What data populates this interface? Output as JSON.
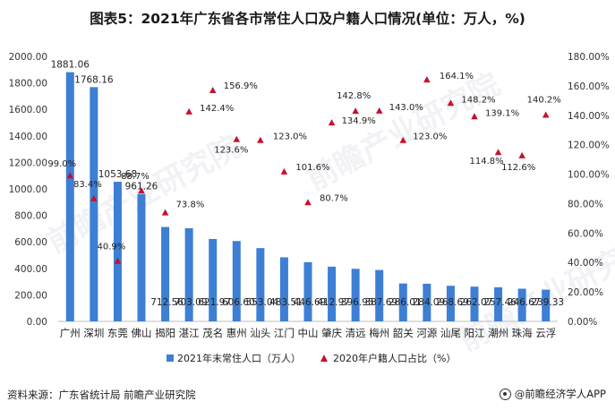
{
  "title": "图表5：2021年广东省各市常住人口及户籍人口情况(单位：万人，%)",
  "source": "资料来源：广东省统计局 前瞻产业研究院",
  "brand": "@前瞻经济学人APP",
  "watermark": "前瞻产业研究院",
  "colors": {
    "bar": "#3d7fd4",
    "marker": "#c8102e",
    "axis": "#333333"
  },
  "chart_data": {
    "type": "bar",
    "categories": [
      "广州",
      "深圳",
      "东莞",
      "佛山",
      "揭阳",
      "湛江",
      "茂名",
      "惠州",
      "汕头",
      "江门",
      "中山",
      "肇庆",
      "清远",
      "梅州",
      "韶关",
      "河源",
      "汕尾",
      "阳江",
      "潮州",
      "珠海",
      "云浮"
    ],
    "series": [
      {
        "name": "2021年末常住人口（万人）",
        "type": "bar",
        "axis": "left",
        "values": [
          1881.06,
          1768.16,
          1053.68,
          961.26,
          712.56,
          703.09,
          621.97,
          606.6,
          553.04,
          483.51,
          446.69,
          412.97,
          396.95,
          387.69,
          286.01,
          284.09,
          268.69,
          262.07,
          257.46,
          246.67,
          239.33
        ],
        "labels": [
          "1881.06",
          "1768.16",
          "1053.68",
          "961.26",
          "712.56",
          "703.09",
          "621.97",
          "606.60",
          "553.04",
          "483.51",
          "446.69",
          "412.97",
          "396.95",
          "387.69",
          "286.01",
          "284.09",
          "268.69",
          "262.07",
          "257.46",
          "246.67",
          "239.33"
        ]
      },
      {
        "name": "2020年户籍人口占比（%）",
        "type": "scatter",
        "axis": "right",
        "values": [
          99.0,
          83.4,
          40.9,
          88.7,
          73.8,
          142.4,
          156.9,
          123.6,
          123.0,
          101.6,
          80.7,
          134.9,
          142.8,
          143.0,
          123.0,
          164.1,
          148.2,
          139.1,
          114.8,
          112.6,
          140.2
        ],
        "labels": [
          "99.0%",
          "83.4%",
          "40.9%",
          "88.7%",
          "73.8%",
          "142.4%",
          "156.9%",
          "123.6%",
          "123.0%",
          "101.6%",
          "80.7%",
          "134.9%",
          "142.8%",
          "143.0%",
          "123.0%",
          "164.1%",
          "148.2%",
          "139.1%",
          "114.8%",
          "112.6%",
          "140.2%"
        ]
      }
    ],
    "y_left": {
      "min": 0,
      "max": 2000,
      "ticks": [
        "0.00",
        "200.00",
        "400.00",
        "600.00",
        "800.00",
        "1000.00",
        "1200.00",
        "1400.00",
        "1600.00",
        "1800.00",
        "2000.00"
      ]
    },
    "y_right": {
      "min": 0,
      "max": 180,
      "ticks": [
        "0.00%",
        "20.00%",
        "40.00%",
        "60.00%",
        "80.00%",
        "100.00%",
        "120.00%",
        "140.00%",
        "160.00%",
        "180.00%"
      ]
    },
    "legend_position": "bottom",
    "grid": false
  }
}
